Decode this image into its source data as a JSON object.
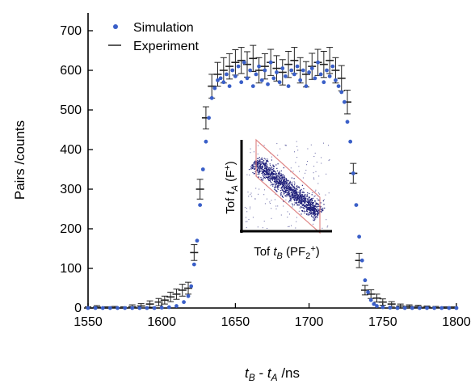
{
  "chart_data": {
    "type": "scatter",
    "xlabel_parts": {
      "t1": "t",
      "s1": "B",
      "mid": " - ",
      "t2": "t",
      "s2": "A",
      "unit": " /ns"
    },
    "ylabel": "Pairs /counts",
    "xlim": [
      1550,
      1800
    ],
    "ylim": [
      0,
      700
    ],
    "xticks": [
      1550,
      1600,
      1650,
      1700,
      1750,
      1800
    ],
    "yticks": [
      0,
      100,
      200,
      300,
      400,
      500,
      600,
      700
    ],
    "grid": false,
    "legend_position": "top-left",
    "colors": {
      "simulation": "#3a5fc8",
      "experiment": "#222222",
      "inset_points": "#1f1f7a",
      "inset_box": "#e08888"
    },
    "series": [
      {
        "name": "Simulation",
        "kind": "markers",
        "x": [
          1550,
          1555,
          1560,
          1565,
          1570,
          1575,
          1580,
          1585,
          1590,
          1595,
          1600,
          1605,
          1610,
          1615,
          1618,
          1620,
          1622,
          1624,
          1626,
          1628,
          1630,
          1632,
          1634,
          1636,
          1638,
          1640,
          1642,
          1644,
          1646,
          1648,
          1650,
          1652,
          1654,
          1656,
          1658,
          1660,
          1662,
          1664,
          1666,
          1668,
          1670,
          1672,
          1674,
          1676,
          1678,
          1680,
          1682,
          1684,
          1686,
          1688,
          1690,
          1692,
          1694,
          1696,
          1698,
          1700,
          1702,
          1704,
          1706,
          1708,
          1710,
          1712,
          1714,
          1716,
          1718,
          1720,
          1722,
          1724,
          1726,
          1728,
          1730,
          1732,
          1734,
          1736,
          1738,
          1740,
          1742,
          1744,
          1746,
          1750,
          1755,
          1760,
          1765,
          1770,
          1775,
          1780,
          1785,
          1790,
          1795,
          1800
        ],
        "y": [
          0,
          0,
          0,
          0,
          0,
          0,
          0,
          0,
          0,
          0,
          1,
          2,
          5,
          15,
          30,
          55,
          110,
          170,
          260,
          350,
          420,
          480,
          530,
          555,
          575,
          580,
          570,
          590,
          560,
          600,
          585,
          610,
          570,
          620,
          580,
          600,
          560,
          590,
          610,
          575,
          600,
          565,
          620,
          580,
          595,
          570,
          605,
          585,
          560,
          600,
          590,
          610,
          575,
          600,
          560,
          595,
          605,
          580,
          620,
          590,
          570,
          600,
          585,
          610,
          575,
          560,
          545,
          520,
          470,
          420,
          340,
          260,
          180,
          120,
          70,
          40,
          20,
          10,
          5,
          2,
          1,
          0,
          0,
          0,
          0,
          0,
          0,
          0,
          0,
          0
        ]
      },
      {
        "name": "Experiment",
        "kind": "errorbars",
        "x": [
          1550,
          1556,
          1562,
          1568,
          1574,
          1580,
          1586,
          1592,
          1598,
          1602,
          1606,
          1610,
          1614,
          1618,
          1622,
          1626,
          1630,
          1634,
          1638,
          1642,
          1646,
          1650,
          1654,
          1658,
          1662,
          1666,
          1670,
          1674,
          1678,
          1682,
          1686,
          1690,
          1694,
          1698,
          1702,
          1706,
          1710,
          1714,
          1718,
          1722,
          1726,
          1730,
          1734,
          1738,
          1742,
          1746,
          1750,
          1756,
          1762,
          1768,
          1774,
          1780,
          1786,
          1792,
          1798
        ],
        "y": [
          0,
          2,
          0,
          1,
          0,
          3,
          5,
          10,
          15,
          20,
          28,
          35,
          45,
          50,
          140,
          300,
          480,
          560,
          590,
          600,
          610,
          620,
          625,
          615,
          630,
          600,
          610,
          620,
          605,
          595,
          615,
          625,
          600,
          590,
          610,
          620,
          615,
          625,
          600,
          580,
          520,
          340,
          120,
          45,
          35,
          25,
          15,
          10,
          5,
          4,
          3,
          2,
          1,
          0,
          0
        ],
        "err": [
          3,
          4,
          3,
          3,
          3,
          5,
          6,
          8,
          9,
          10,
          12,
          13,
          15,
          15,
          20,
          25,
          28,
          30,
          30,
          32,
          32,
          32,
          33,
          32,
          33,
          32,
          32,
          33,
          32,
          32,
          33,
          33,
          32,
          32,
          33,
          33,
          33,
          33,
          32,
          32,
          30,
          25,
          18,
          12,
          11,
          10,
          8,
          6,
          5,
          4,
          4,
          3,
          3,
          3,
          3
        ]
      }
    ],
    "inset": {
      "xlabel_parts": {
        "pre": "Tof ",
        "t": "t",
        "s": "B",
        "post": " (PF",
        "sub2": "2",
        "sup": "+",
        "end": ")"
      },
      "ylabel_parts": {
        "pre": "Tof ",
        "t": "t",
        "s": "A",
        "post": " (F",
        "sup": "+",
        "end": ")"
      }
    }
  }
}
